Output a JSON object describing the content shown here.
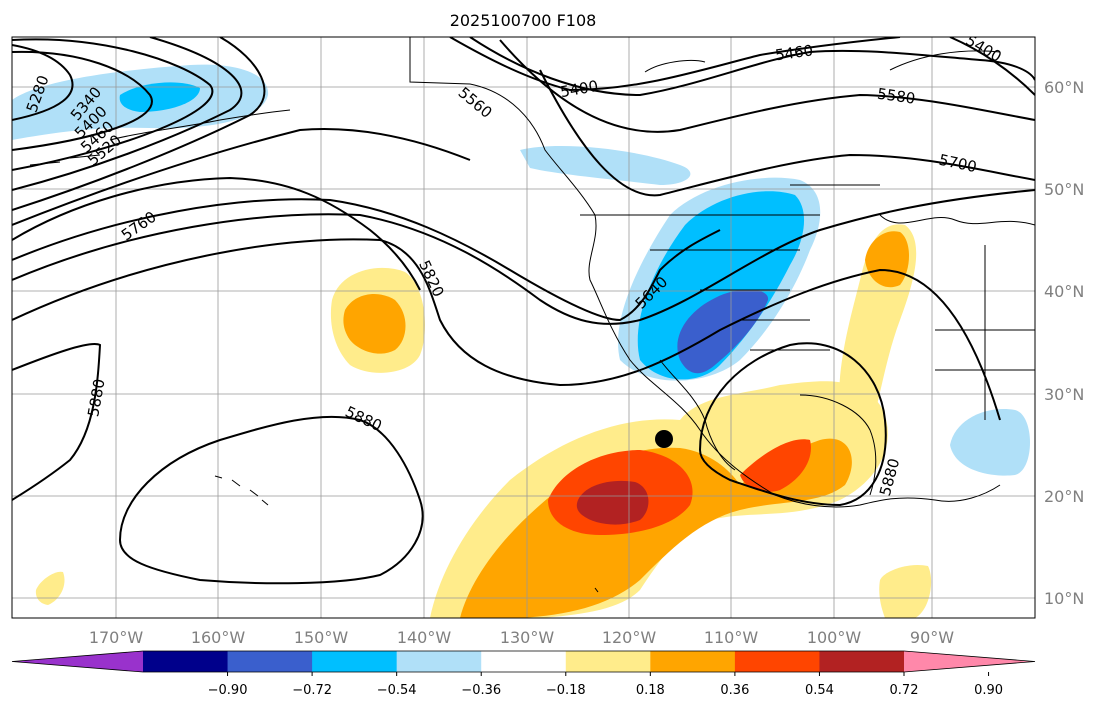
{
  "title": "2025100700 F108",
  "map": {
    "lon_ticks": [
      "170°W",
      "160°W",
      "150°W",
      "140°W",
      "130°W",
      "120°W",
      "110°W",
      "100°W",
      "90°W"
    ],
    "lat_ticks": [
      "60°N",
      "50°N",
      "40°N",
      "30°N",
      "20°N",
      "10°N"
    ],
    "contour_labels": [
      "5280",
      "5340",
      "5400",
      "5460",
      "5520",
      "5760",
      "5880",
      "5880",
      "5820",
      "5640",
      "5400",
      "5460",
      "5580",
      "5700",
      "5400",
      "5880",
      "5560"
    ],
    "shading": {
      "positive_color_scale": [
        "#ffec8b",
        "#ffa500",
        "#ff4500",
        "#b22222",
        "#ff88aa"
      ],
      "negative_color_scale": [
        "#b0e0f8",
        "#00bfff",
        "#3a5fcd",
        "#00008b",
        "#9932cc"
      ]
    },
    "marker": "storm-center-dot"
  },
  "colorbar": {
    "ticks": [
      "−0.90",
      "−0.72",
      "−0.54",
      "−0.36",
      "−0.18",
      "0.18",
      "0.36",
      "0.54",
      "0.72",
      "0.90"
    ],
    "colors": [
      "#9932cc",
      "#00008b",
      "#3a5fcd",
      "#00bfff",
      "#b0e0f8",
      "#ffffff",
      "#ffec8b",
      "#ffa500",
      "#ff4500",
      "#b22222",
      "#ff88aa"
    ]
  }
}
